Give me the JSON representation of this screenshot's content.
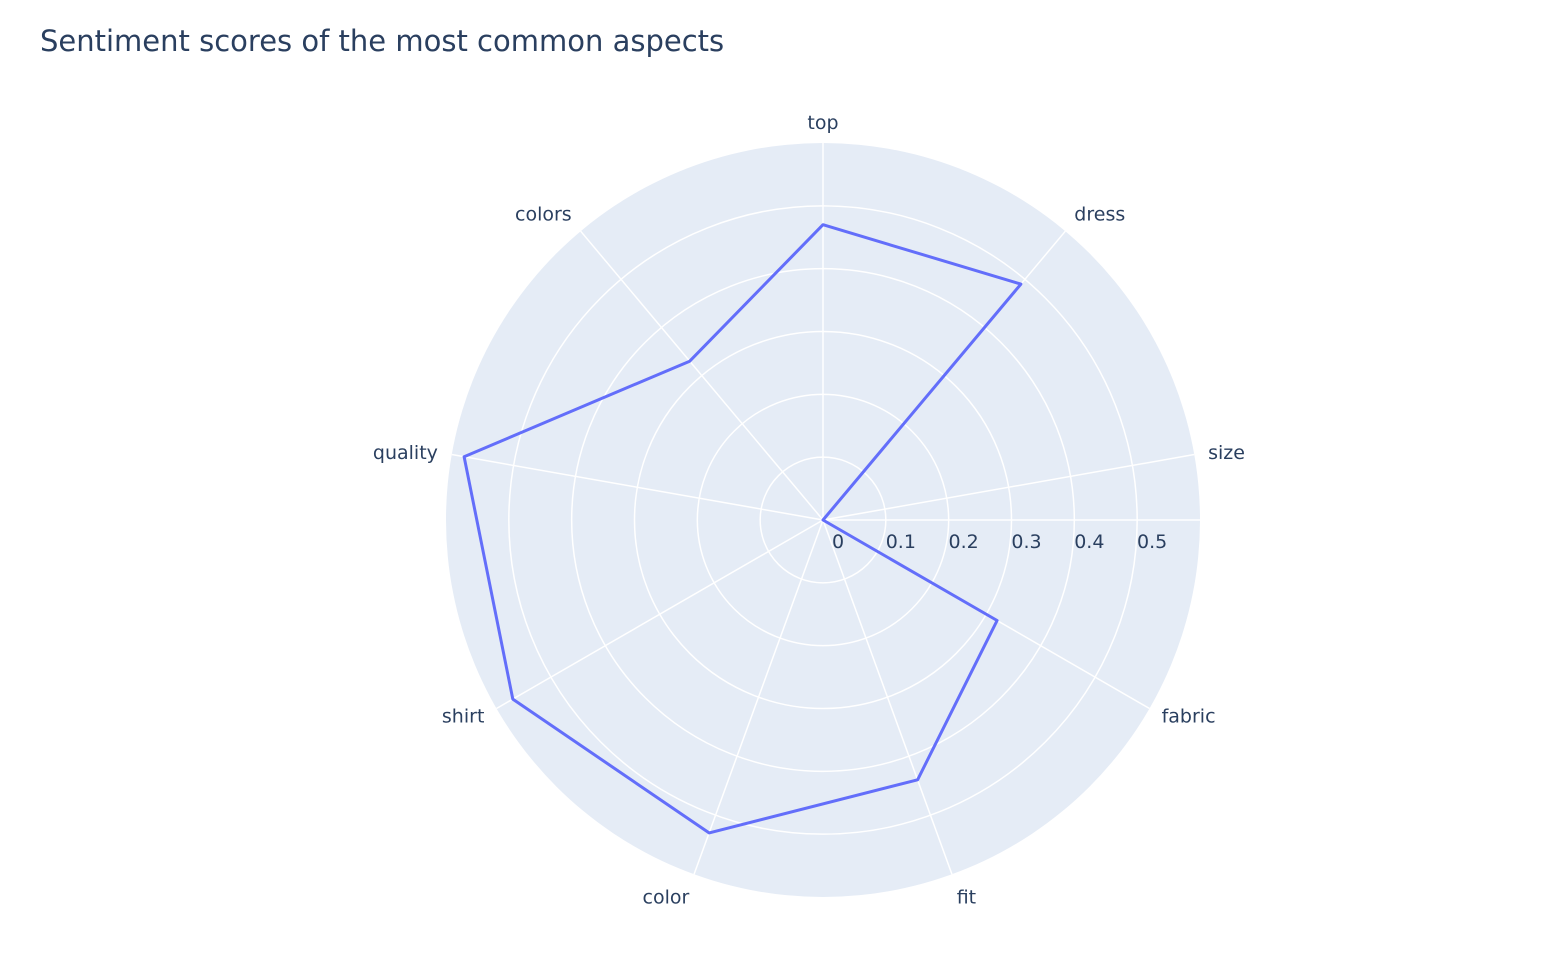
{
  "chart_data": {
    "type": "radar",
    "title": "Sentiment scores of the most common aspects",
    "categories": [
      "top",
      "dress",
      "size",
      "fabric",
      "fit",
      "color",
      "shirt",
      "quality",
      "colors"
    ],
    "values": [
      0.47,
      0.49,
      0.0,
      0.32,
      0.44,
      0.53,
      0.57,
      0.58,
      0.33
    ],
    "radial_axis": {
      "range": [
        0,
        0.6
      ],
      "ticks": [
        0,
        0.1,
        0.2,
        0.3,
        0.4,
        0.5
      ],
      "tick_labels": [
        "0",
        "0.1",
        "0.2",
        "0.3",
        "0.4",
        "0.5"
      ]
    },
    "grid": true,
    "series_color": "#636efa",
    "background_color": "#e5ecf6",
    "grid_color": "#ffffff"
  }
}
